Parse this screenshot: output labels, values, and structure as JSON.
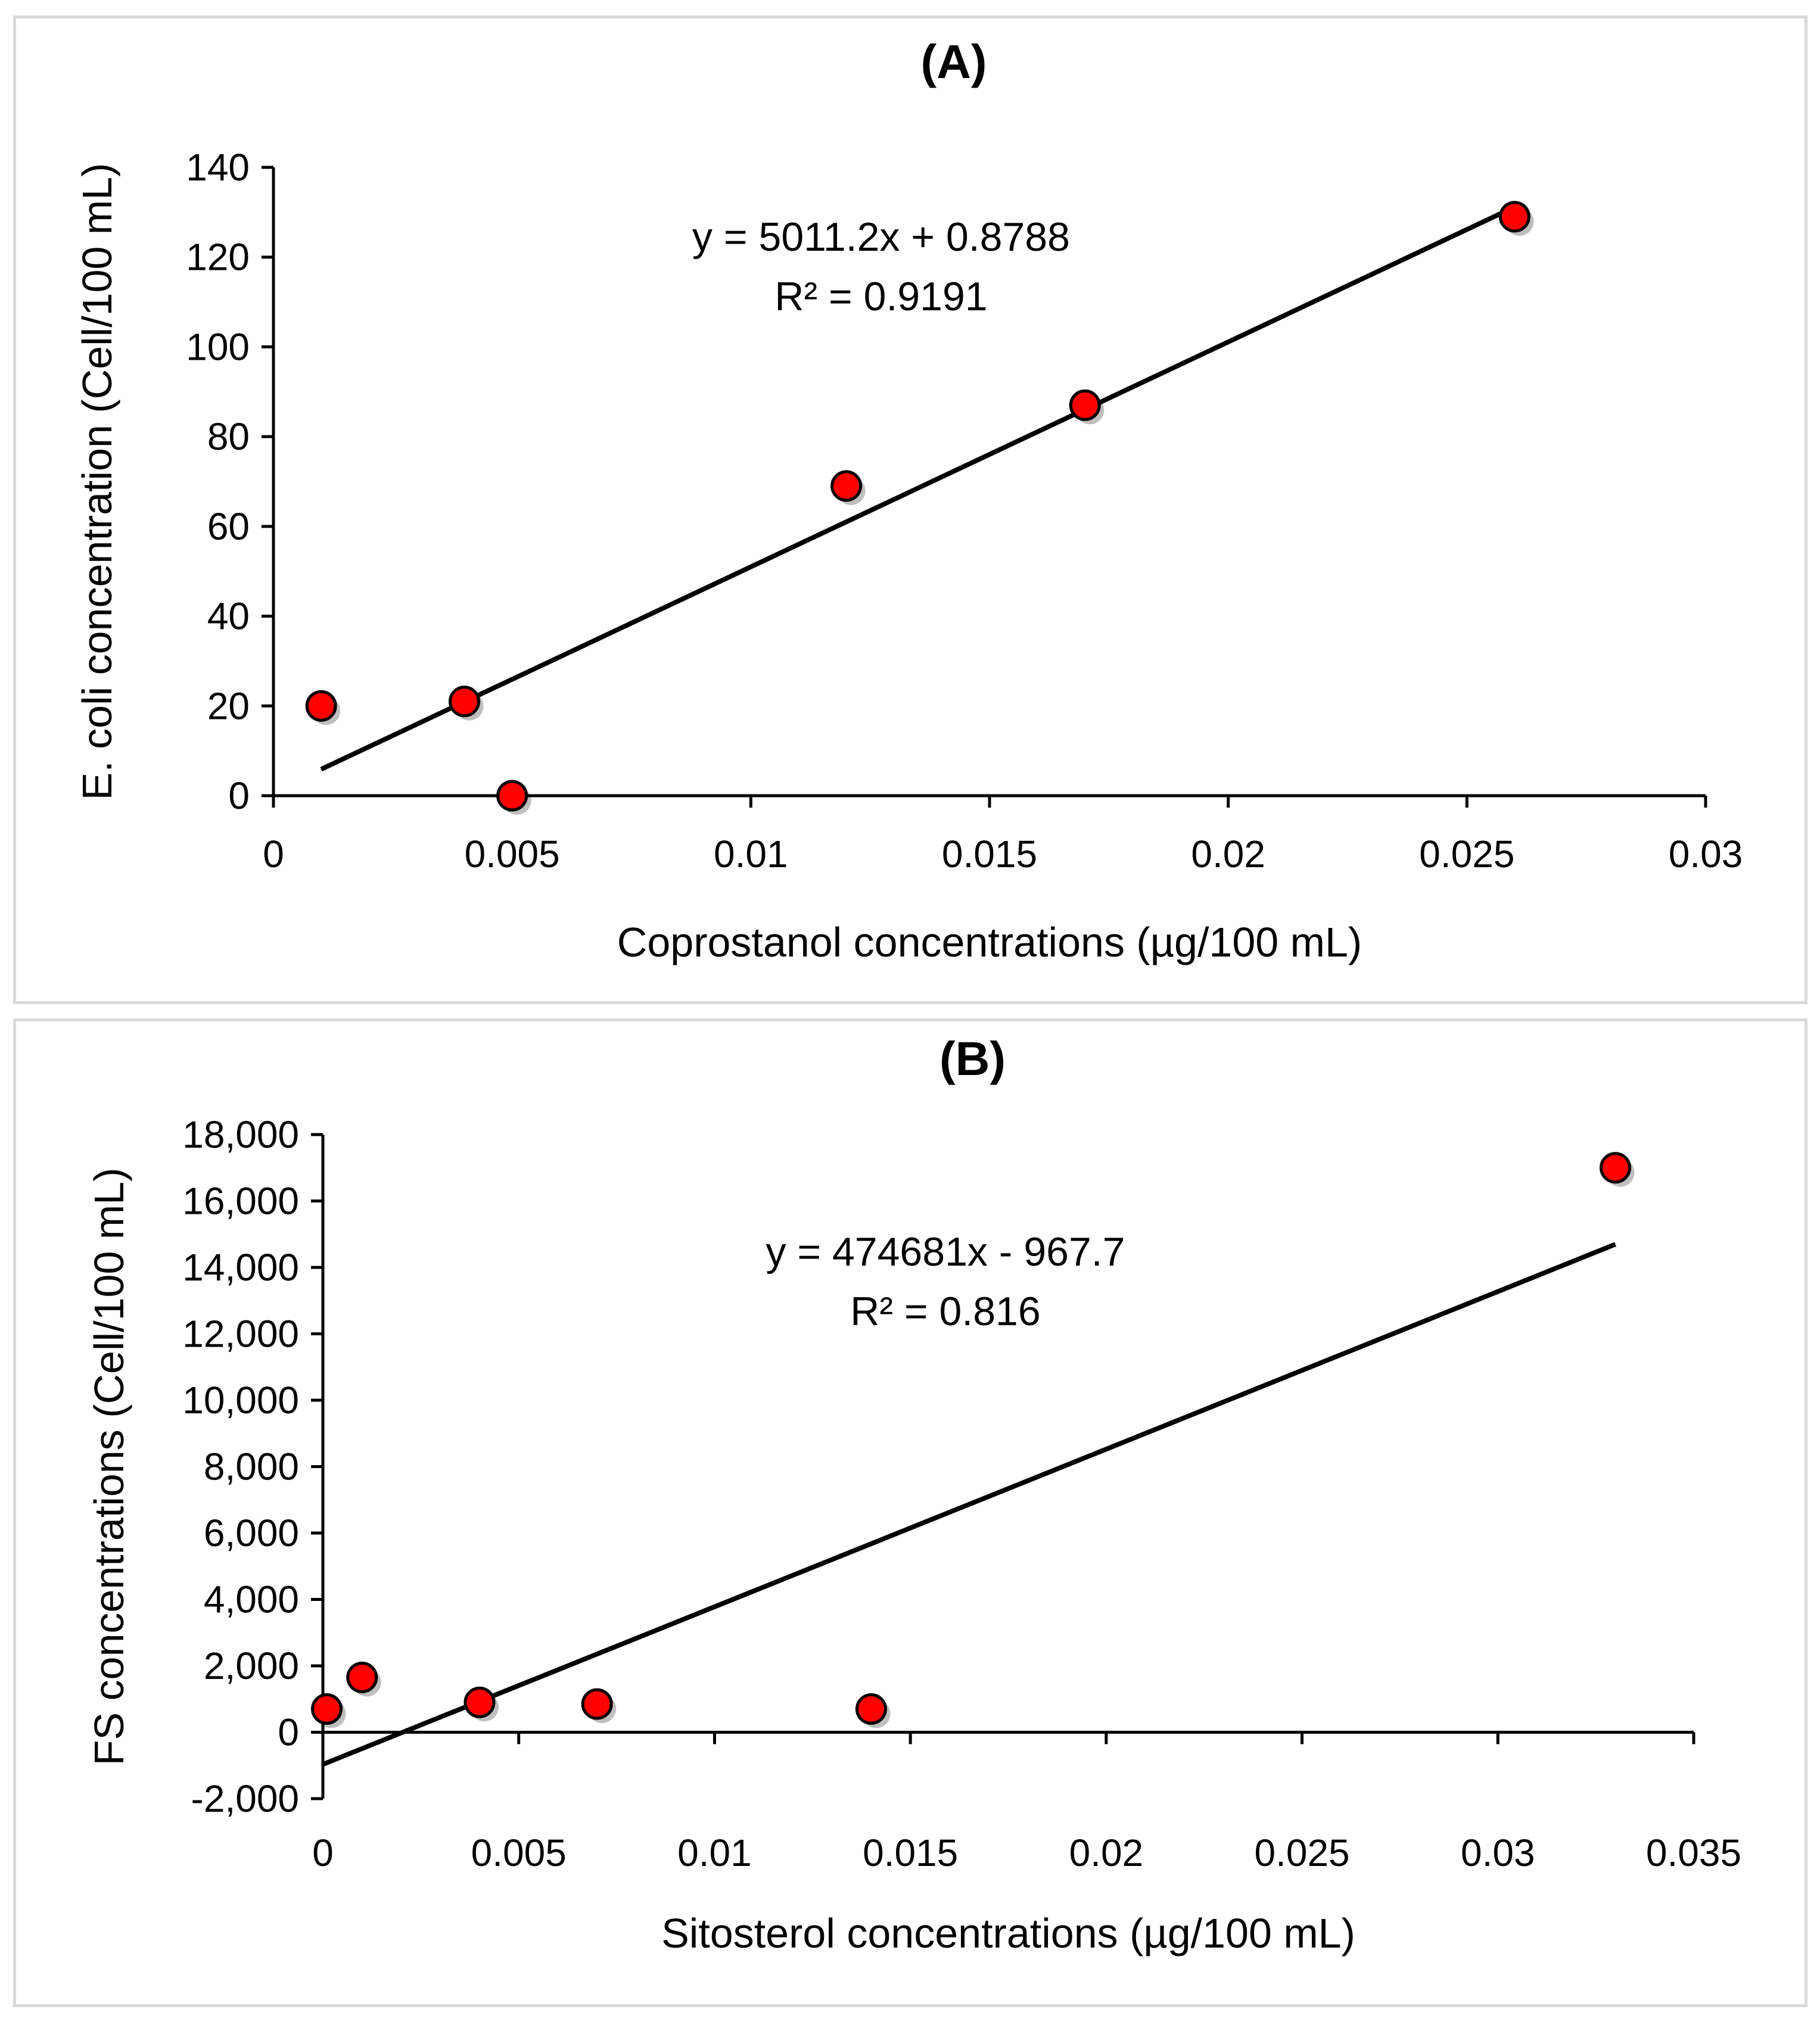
{
  "chart_data": [
    {
      "type": "scatter",
      "title": "(A)",
      "xlabel": "Coprostanol concentrations (µg/100 mL)",
      "ylabel": "E. coli concentration (Cell/100 mL)",
      "xlim": [
        0,
        0.03
      ],
      "ylim": [
        0,
        140
      ],
      "x_ticks": [
        "0",
        "0.005",
        "0.01",
        "0.015",
        "0.02",
        "0.025",
        "0.03"
      ],
      "y_ticks": [
        "0",
        "20",
        "40",
        "60",
        "80",
        "100",
        "120",
        "140"
      ],
      "points": [
        {
          "x": 0.001,
          "y": 20
        },
        {
          "x": 0.004,
          "y": 21
        },
        {
          "x": 0.005,
          "y": 0
        },
        {
          "x": 0.012,
          "y": 69
        },
        {
          "x": 0.017,
          "y": 87
        },
        {
          "x": 0.026,
          "y": 129
        }
      ],
      "trendline": {
        "slope": 5011.2,
        "intercept": 0.8788,
        "x_range": [
          0.001,
          0.026
        ]
      },
      "equation": "y = 5011.2x + 0.8788",
      "r_squared": "R² = 0.9191",
      "marker_color": "#ff0000",
      "line_color": "#000000",
      "grid": false
    },
    {
      "type": "scatter",
      "title": "(B)",
      "xlabel": "Sitosterol concentrations (µg/100 mL)",
      "ylabel": "FS concentrations (Cell/100 mL)",
      "xlim": [
        0,
        0.035
      ],
      "ylim": [
        -2000,
        18000
      ],
      "x_ticks": [
        "0",
        "0.005",
        "0.01",
        "0.015",
        "0.02",
        "0.025",
        "0.03",
        "0.035"
      ],
      "y_ticks": [
        "-2,000",
        "0",
        "2,000",
        "4,000",
        "6,000",
        "8,000",
        "10,000",
        "12,000",
        "14,000",
        "16,000",
        "18,000"
      ],
      "points": [
        {
          "x": 0.0001,
          "y": 700
        },
        {
          "x": 0.001,
          "y": 1650
        },
        {
          "x": 0.004,
          "y": 900
        },
        {
          "x": 0.007,
          "y": 850
        },
        {
          "x": 0.014,
          "y": 700
        },
        {
          "x": 0.033,
          "y": 17000
        }
      ],
      "trendline": {
        "slope": 474681,
        "intercept": -967.7,
        "x_range": [
          0,
          0.033
        ]
      },
      "equation": "y = 474681x - 967.7",
      "r_squared": "R² = 0.816",
      "marker_color": "#ff0000",
      "line_color": "#000000",
      "grid": false
    }
  ]
}
